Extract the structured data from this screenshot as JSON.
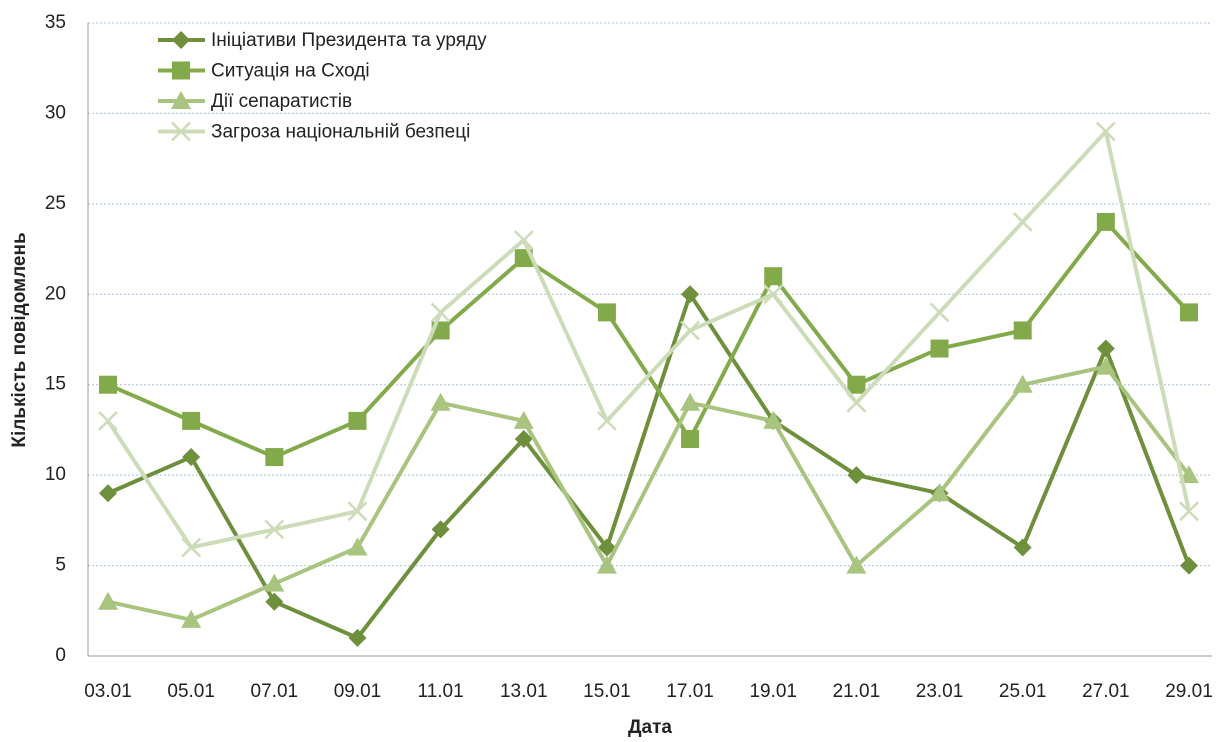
{
  "chart_data": {
    "type": "line",
    "xlabel": "Дата",
    "ylabel": "Кількість повідомлень",
    "categories": [
      "03.01",
      "05.01",
      "07.01",
      "09.01",
      "11.01",
      "13.01",
      "15.01",
      "17.01",
      "19.01",
      "21.01",
      "23.01",
      "25.01",
      "27.01",
      "29.01"
    ],
    "ylim": [
      0,
      35
    ],
    "yticks": [
      0,
      5,
      10,
      15,
      20,
      25,
      30,
      35
    ],
    "grid": true,
    "legend": "upper left",
    "series": [
      {
        "name": "Ініціативи Президента та уряду",
        "color": "#6e8f3b",
        "marker": "diamond",
        "values": [
          9,
          11,
          3,
          1,
          7,
          12,
          6,
          20,
          13,
          10,
          9,
          6,
          17,
          5
        ]
      },
      {
        "name": "Ситуація на Сході",
        "color": "#83aa4a",
        "marker": "square",
        "values": [
          15,
          13,
          11,
          13,
          18,
          22,
          19,
          12,
          21,
          15,
          17,
          18,
          24,
          19
        ]
      },
      {
        "name": "Дії сепаратистів",
        "color": "#a8c47f",
        "marker": "triangle",
        "values": [
          3,
          2,
          4,
          6,
          14,
          13,
          5,
          14,
          13,
          5,
          9,
          15,
          16,
          10
        ]
      },
      {
        "name": "Загроза національній безпеці",
        "color": "#cddcb8",
        "marker": "x",
        "values": [
          13,
          6,
          7,
          8,
          19,
          23,
          13,
          18,
          20,
          14,
          19,
          24,
          29,
          8
        ]
      }
    ]
  }
}
